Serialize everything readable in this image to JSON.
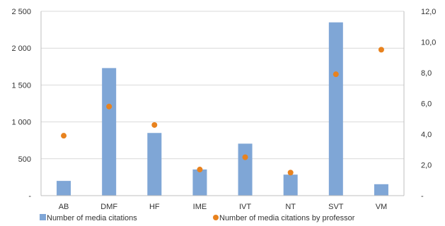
{
  "chart_data": {
    "type": "bar",
    "categories": [
      "AB",
      "DMF",
      "HF",
      "IME",
      "IVT",
      "NT",
      "SVT",
      "VM"
    ],
    "series": [
      {
        "name": "Number of media citations",
        "type": "bar",
        "axis": "left",
        "color": "#7fa6d6",
        "values": [
          200,
          1730,
          850,
          355,
          705,
          285,
          2350,
          155
        ]
      },
      {
        "name": "Number of media citations by professor",
        "type": "scatter",
        "axis": "right",
        "color": "#e8821e",
        "values": [
          3.9,
          5.8,
          4.6,
          1.7,
          2.5,
          1.5,
          7.9,
          9.5
        ]
      }
    ],
    "y_left": {
      "ylim": [
        0,
        2500
      ],
      "ticks": [
        0,
        500,
        1000,
        1500,
        2000,
        2500
      ],
      "tick_labels": [
        "-",
        "500",
        "1 000",
        "1 500",
        "2 000",
        "2 500"
      ]
    },
    "y_right": {
      "ylim": [
        0,
        12
      ],
      "ticks": [
        0,
        2,
        4,
        6,
        8,
        10,
        12
      ],
      "tick_labels": [
        "-",
        "2,0",
        "4,0",
        "6,0",
        "8,0",
        "10,0",
        "12,0"
      ]
    },
    "grid": true,
    "legend_position": "bottom-left"
  }
}
